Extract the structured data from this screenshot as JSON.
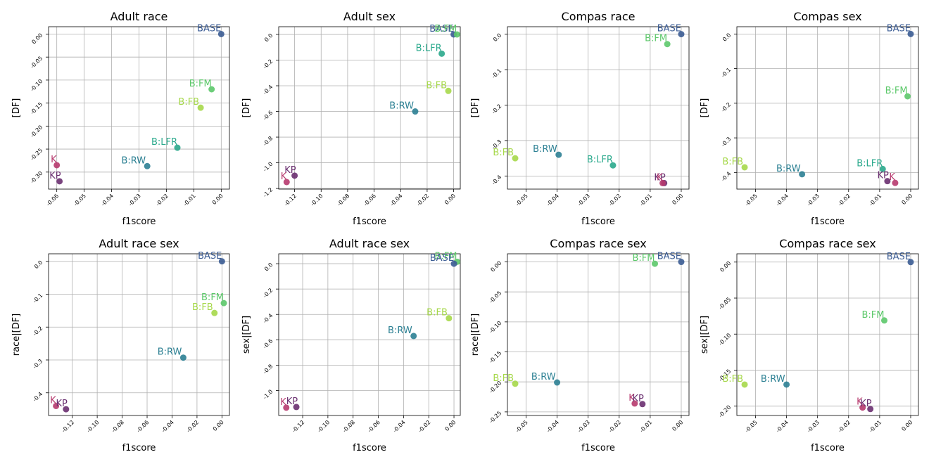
{
  "colors": {
    "BASE": "#3b5c94",
    "B:FM": "#5cc86a",
    "B:FB": "#a6d84a",
    "B:LFR": "#2aa98c",
    "B:RW": "#2c8093",
    "K": "#b73a6e",
    "KP": "#6a2f70"
  },
  "chart_data": [
    {
      "type": "scatter",
      "title": "Adult race",
      "xlabel": "f1score",
      "ylabel": "[DF]",
      "xticks": [
        "-0.06",
        "-0.05",
        "-0.04",
        "-0.03",
        "-0.02",
        "-0.01",
        "0.00"
      ],
      "yticks": [
        "0.00",
        "-0.05",
        "-0.10",
        "-0.15",
        "-0.20",
        "-0.25",
        "-0.30"
      ],
      "points": [
        {
          "label": "BASE",
          "x": 0.0,
          "y": 0.0
        },
        {
          "label": "B:FM",
          "x": -0.0035,
          "y": -0.12
        },
        {
          "label": "B:FB",
          "x": -0.0075,
          "y": -0.16
        },
        {
          "label": "B:LFR",
          "x": -0.016,
          "y": -0.247
        },
        {
          "label": "B:RW",
          "x": -0.027,
          "y": -0.287
        },
        {
          "label": "K",
          "x": -0.06,
          "y": -0.285
        },
        {
          "label": "KP",
          "x": -0.059,
          "y": -0.32
        }
      ]
    },
    {
      "type": "scatter",
      "title": "Adult sex",
      "xlabel": "f1score",
      "ylabel": "[DF]",
      "xticks": [
        "-0.12",
        "-0.10",
        "-0.08",
        "-0.06",
        "-0.04",
        "-0.02",
        "0.00"
      ],
      "yticks": [
        "0.0",
        "-0.2",
        "-0.4",
        "-0.6",
        "-0.8",
        "-1.0",
        "-1.2"
      ],
      "points": [
        {
          "label": "BASE",
          "x": 0.0,
          "y": 0.0
        },
        {
          "label": "B:FM",
          "x": 0.0025,
          "y": 0.0
        },
        {
          "label": "B:LFR",
          "x": -0.009,
          "y": -0.15
        },
        {
          "label": "B:FB",
          "x": -0.004,
          "y": -0.44
        },
        {
          "label": "B:RW",
          "x": -0.029,
          "y": -0.6
        },
        {
          "label": "KP",
          "x": -0.12,
          "y": -1.1
        },
        {
          "label": "K",
          "x": -0.126,
          "y": -1.15
        }
      ]
    },
    {
      "type": "scatter",
      "title": "Compas race",
      "xlabel": "f1score",
      "ylabel": "[DF]",
      "xticks": [
        "-0.05",
        "-0.04",
        "-0.03",
        "-0.02",
        "-0.01",
        "0.00"
      ],
      "yticks": [
        "0.0",
        "-0.1",
        "-0.2",
        "-0.3",
        "-0.4"
      ],
      "points": [
        {
          "label": "BASE",
          "x": 0.0,
          "y": 0.0
        },
        {
          "label": "B:FM",
          "x": -0.0045,
          "y": -0.028
        },
        {
          "label": "B:FB",
          "x": -0.0535,
          "y": -0.35
        },
        {
          "label": "B:RW",
          "x": -0.0395,
          "y": -0.34
        },
        {
          "label": "B:LFR",
          "x": -0.022,
          "y": -0.37
        },
        {
          "label": "KP",
          "x": -0.0055,
          "y": -0.42
        },
        {
          "label": "K",
          "x": -0.006,
          "y": -0.42
        }
      ]
    },
    {
      "type": "scatter",
      "title": "Compas sex",
      "xlabel": "f1score",
      "ylabel": "[DF]",
      "xticks": [
        "-0.05",
        "-0.04",
        "-0.03",
        "-0.02",
        "-0.01",
        "0.00"
      ],
      "yticks": [
        "0.0",
        "-0.1",
        "-0.2",
        "-0.3",
        "-0.4"
      ],
      "points": [
        {
          "label": "BASE",
          "x": 0.0,
          "y": 0.0
        },
        {
          "label": "B:FM",
          "x": -0.001,
          "y": -0.18
        },
        {
          "label": "B:FB",
          "x": -0.0535,
          "y": -0.385
        },
        {
          "label": "B:RW",
          "x": -0.035,
          "y": -0.405
        },
        {
          "label": "B:LFR",
          "x": -0.009,
          "y": -0.39
        },
        {
          "label": "KP",
          "x": -0.0075,
          "y": -0.425
        },
        {
          "label": "K",
          "x": -0.005,
          "y": -0.43
        }
      ]
    },
    {
      "type": "scatter",
      "title": "Adult race sex",
      "xlabel": "f1score",
      "ylabel": "race|[DF]",
      "xticks": [
        "-0.12",
        "-0.10",
        "-0.08",
        "-0.06",
        "-0.04",
        "-0.02",
        "0.00"
      ],
      "yticks": [
        "0.0",
        "-0.1",
        "-0.2",
        "-0.3",
        "-0.4"
      ],
      "points": [
        {
          "label": "BASE",
          "x": 0.0,
          "y": 0.0
        },
        {
          "label": "B:FM",
          "x": 0.0015,
          "y": -0.127
        },
        {
          "label": "B:FB",
          "x": -0.006,
          "y": -0.157
        },
        {
          "label": "B:RW",
          "x": -0.031,
          "y": -0.293
        },
        {
          "label": "K",
          "x": -0.133,
          "y": -0.44
        },
        {
          "label": "KP",
          "x": -0.125,
          "y": -0.45
        }
      ]
    },
    {
      "type": "scatter",
      "title": "Adult race sex",
      "xlabel": "f1score",
      "ylabel": "sex|[DF]",
      "xticks": [
        "-0.12",
        "-0.10",
        "-0.08",
        "-0.06",
        "-0.04",
        "-0.02",
        "0.00"
      ],
      "yticks": [
        "0.0",
        "-0.2",
        "-0.4",
        "-0.6",
        "-0.8",
        "-1.0"
      ],
      "points": [
        {
          "label": "B:FM",
          "x": 0.0025,
          "y": 0.015
        },
        {
          "label": "BASE",
          "x": 0.0,
          "y": 0.0
        },
        {
          "label": "B:FB",
          "x": -0.004,
          "y": -0.43
        },
        {
          "label": "B:RW",
          "x": -0.032,
          "y": -0.57
        },
        {
          "label": "K",
          "x": -0.133,
          "y": -1.135
        },
        {
          "label": "KP",
          "x": -0.125,
          "y": -1.13
        }
      ]
    },
    {
      "type": "scatter",
      "title": "Compas race sex",
      "xlabel": "f1score",
      "ylabel": "race|[DF]",
      "xticks": [
        "-0.05",
        "-0.04",
        "-0.03",
        "-0.02",
        "-0.01",
        "0.00"
      ],
      "yticks": [
        "0.00",
        "-0.05",
        "-0.10",
        "-0.15",
        "-0.20",
        "-0.25"
      ],
      "points": [
        {
          "label": "BASE",
          "x": 0.0,
          "y": 0.0
        },
        {
          "label": "B:FM",
          "x": -0.0085,
          "y": -0.003
        },
        {
          "label": "B:FB",
          "x": -0.0535,
          "y": -0.203
        },
        {
          "label": "B:RW",
          "x": -0.04,
          "y": -0.201
        },
        {
          "label": "K",
          "x": -0.015,
          "y": -0.236
        },
        {
          "label": "KP",
          "x": -0.0125,
          "y": -0.237
        }
      ]
    },
    {
      "type": "scatter",
      "title": "Compas race sex",
      "xlabel": "f1score",
      "ylabel": "sex|[DF]",
      "xticks": [
        "-0.05",
        "-0.04",
        "-0.03",
        "-0.02",
        "-0.01",
        "0.00"
      ],
      "yticks": [
        "0.00",
        "-0.05",
        "-0.10",
        "-0.15",
        "-0.20"
      ],
      "points": [
        {
          "label": "BASE",
          "x": 0.0,
          "y": 0.0
        },
        {
          "label": "B:FM",
          "x": -0.0085,
          "y": -0.081
        },
        {
          "label": "B:FB",
          "x": -0.0535,
          "y": -0.17
        },
        {
          "label": "B:RW",
          "x": -0.04,
          "y": -0.17
        },
        {
          "label": "K",
          "x": -0.0155,
          "y": -0.202
        },
        {
          "label": "KP",
          "x": -0.013,
          "y": -0.204
        }
      ]
    }
  ]
}
